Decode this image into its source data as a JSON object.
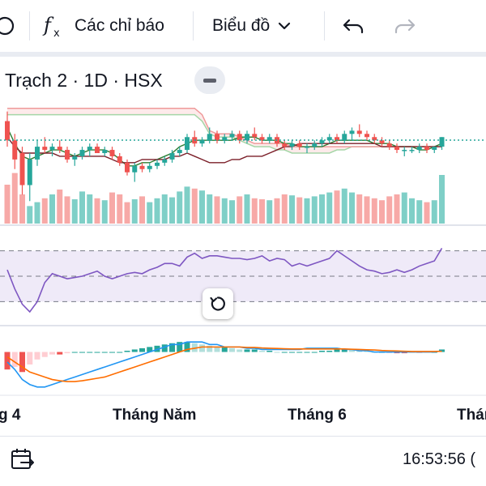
{
  "toolbar": {
    "indicators_label": "Các chỉ báo",
    "chart_type_label": "Biểu đồ",
    "icons": [
      "alert-edge-icon",
      "fx-icon",
      "chevron-down-icon",
      "undo-icon",
      "redo-icon"
    ]
  },
  "legend": {
    "symbol": "Trạch 2 · 1D · HSX"
  },
  "x_axis": {
    "labels": [
      "g 4",
      "Tháng Năm",
      "Tháng 6",
      "Thán"
    ]
  },
  "status": {
    "clock": "16:53:56 ("
  },
  "colors": {
    "up": "#26a69a",
    "down": "#ef5350",
    "vol_up": "#7fcfc7",
    "vol_down": "#f7a9a7",
    "rsi": "#7e57c2",
    "rsi_band": "#efeaf8",
    "macd": "#2196f3",
    "signal": "#ff6d00",
    "tenkan": "#2e7d32",
    "kijun": "#7b1e28",
    "senkou_a": "#a5d6a7",
    "senkou_b": "#ef9a9a"
  },
  "chart_data": {
    "type": "candlestick",
    "candles": [
      {
        "o": 70,
        "h": 73,
        "l": 62,
        "c": 64
      },
      {
        "o": 64,
        "h": 66,
        "l": 55,
        "c": 58
      },
      {
        "o": 60,
        "h": 62,
        "l": 47,
        "c": 50
      },
      {
        "o": 50,
        "h": 60,
        "l": 45,
        "c": 58
      },
      {
        "o": 58,
        "h": 64,
        "l": 56,
        "c": 62
      },
      {
        "o": 62,
        "h": 65,
        "l": 60,
        "c": 61
      },
      {
        "o": 61,
        "h": 63,
        "l": 59,
        "c": 62
      },
      {
        "o": 62,
        "h": 64,
        "l": 60,
        "c": 61
      },
      {
        "o": 61,
        "h": 62,
        "l": 57,
        "c": 58
      },
      {
        "o": 58,
        "h": 60,
        "l": 56,
        "c": 59
      },
      {
        "o": 59,
        "h": 62,
        "l": 58,
        "c": 61
      },
      {
        "o": 61,
        "h": 63,
        "l": 59,
        "c": 62
      },
      {
        "o": 62,
        "h": 63,
        "l": 60,
        "c": 60
      },
      {
        "o": 60,
        "h": 62,
        "l": 59,
        "c": 61
      },
      {
        "o": 61,
        "h": 62,
        "l": 58,
        "c": 59
      },
      {
        "o": 59,
        "h": 60,
        "l": 56,
        "c": 57
      },
      {
        "o": 57,
        "h": 58,
        "l": 53,
        "c": 54
      },
      {
        "o": 54,
        "h": 57,
        "l": 51,
        "c": 56
      },
      {
        "o": 56,
        "h": 57,
        "l": 54,
        "c": 55
      },
      {
        "o": 55,
        "h": 57,
        "l": 54,
        "c": 56
      },
      {
        "o": 56,
        "h": 58,
        "l": 55,
        "c": 57
      },
      {
        "o": 57,
        "h": 59,
        "l": 56,
        "c": 58
      },
      {
        "o": 58,
        "h": 61,
        "l": 57,
        "c": 60
      },
      {
        "o": 60,
        "h": 62,
        "l": 59,
        "c": 61
      },
      {
        "o": 61,
        "h": 66,
        "l": 60,
        "c": 65
      },
      {
        "o": 65,
        "h": 67,
        "l": 62,
        "c": 63
      },
      {
        "o": 63,
        "h": 65,
        "l": 62,
        "c": 64
      },
      {
        "o": 64,
        "h": 68,
        "l": 63,
        "c": 66
      },
      {
        "o": 66,
        "h": 67,
        "l": 63,
        "c": 64
      },
      {
        "o": 64,
        "h": 66,
        "l": 63,
        "c": 65
      },
      {
        "o": 65,
        "h": 67,
        "l": 64,
        "c": 66
      },
      {
        "o": 66,
        "h": 67,
        "l": 63,
        "c": 64
      },
      {
        "o": 64,
        "h": 67,
        "l": 63,
        "c": 66
      },
      {
        "o": 66,
        "h": 68,
        "l": 64,
        "c": 65
      },
      {
        "o": 65,
        "h": 66,
        "l": 63,
        "c": 64
      },
      {
        "o": 64,
        "h": 66,
        "l": 63,
        "c": 65
      },
      {
        "o": 65,
        "h": 66,
        "l": 62,
        "c": 63
      },
      {
        "o": 63,
        "h": 64,
        "l": 61,
        "c": 62
      },
      {
        "o": 62,
        "h": 64,
        "l": 61,
        "c": 63
      },
      {
        "o": 63,
        "h": 64,
        "l": 61,
        "c": 62
      },
      {
        "o": 62,
        "h": 63,
        "l": 60,
        "c": 62
      },
      {
        "o": 62,
        "h": 64,
        "l": 61,
        "c": 63
      },
      {
        "o": 63,
        "h": 65,
        "l": 62,
        "c": 64
      },
      {
        "o": 64,
        "h": 66,
        "l": 63,
        "c": 65
      },
      {
        "o": 65,
        "h": 66,
        "l": 63,
        "c": 64
      },
      {
        "o": 64,
        "h": 67,
        "l": 63,
        "c": 66
      },
      {
        "o": 66,
        "h": 68,
        "l": 64,
        "c": 67
      },
      {
        "o": 67,
        "h": 69,
        "l": 65,
        "c": 66
      },
      {
        "o": 66,
        "h": 67,
        "l": 64,
        "c": 65
      },
      {
        "o": 65,
        "h": 66,
        "l": 63,
        "c": 64
      },
      {
        "o": 64,
        "h": 65,
        "l": 62,
        "c": 63
      },
      {
        "o": 63,
        "h": 64,
        "l": 61,
        "c": 62
      },
      {
        "o": 62,
        "h": 63,
        "l": 60,
        "c": 61
      },
      {
        "o": 61,
        "h": 62,
        "l": 59,
        "c": 61
      },
      {
        "o": 61,
        "h": 62,
        "l": 60,
        "c": 61
      },
      {
        "o": 61,
        "h": 63,
        "l": 60,
        "c": 62
      },
      {
        "o": 62,
        "h": 63,
        "l": 60,
        "c": 61
      },
      {
        "o": 61,
        "h": 62,
        "l": 60,
        "c": 62
      },
      {
        "o": 62,
        "h": 65,
        "l": 61,
        "c": 65
      }
    ],
    "volume": [
      40,
      52,
      30,
      18,
      22,
      26,
      30,
      35,
      28,
      25,
      33,
      30,
      26,
      24,
      32,
      30,
      22,
      25,
      28,
      22,
      26,
      30,
      27,
      33,
      38,
      36,
      34,
      30,
      28,
      26,
      24,
      28,
      30,
      26,
      25,
      24,
      26,
      30,
      29,
      27,
      26,
      28,
      30,
      32,
      34,
      36,
      32,
      30,
      28,
      26,
      24,
      28,
      30,
      32,
      26,
      24,
      22,
      24,
      50
    ],
    "tenkan": [
      68,
      63,
      59,
      58,
      59,
      60,
      61,
      61,
      60,
      59,
      60,
      61,
      61,
      61,
      60,
      58,
      56,
      56,
      57,
      57,
      58,
      59,
      60,
      62,
      63,
      64,
      64,
      64,
      64,
      64,
      64,
      65,
      65,
      65,
      64,
      64,
      64,
      63,
      63,
      62,
      62,
      62,
      62,
      63,
      64,
      64,
      64,
      64,
      64,
      63,
      63,
      63,
      62,
      62,
      62,
      61,
      61,
      62,
      63
    ],
    "kijun": [
      65,
      62,
      60,
      60,
      60,
      60,
      60,
      59,
      59,
      59,
      59,
      59,
      59,
      59,
      58,
      57,
      57,
      57,
      58,
      58,
      58,
      58,
      59,
      59,
      60,
      59,
      58,
      57,
      57,
      57,
      58,
      58,
      59,
      59,
      59,
      60,
      61,
      62,
      62,
      63,
      63,
      63,
      63,
      63,
      63,
      63,
      63,
      63,
      63,
      63,
      62,
      62,
      62,
      62,
      62,
      62,
      62,
      62,
      62
    ],
    "senkou_a": [
      72,
      72,
      72,
      72,
      72,
      72,
      72,
      72,
      72,
      72,
      72,
      72,
      72,
      72,
      72,
      72,
      72,
      72,
      72,
      72,
      72,
      72,
      72,
      72,
      72,
      72,
      70,
      66,
      65,
      65,
      65,
      64,
      63,
      62,
      62,
      62,
      61,
      61,
      60,
      60,
      60,
      60,
      60,
      60,
      61,
      61,
      62,
      62,
      62,
      62,
      62,
      62,
      62,
      62,
      62,
      62,
      62,
      62,
      62
    ],
    "senkou_b": [
      74,
      74,
      74,
      74,
      74,
      74,
      74,
      74,
      74,
      74,
      74,
      74,
      74,
      74,
      74,
      74,
      74,
      74,
      74,
      74,
      74,
      74,
      74,
      74,
      74,
      74,
      72,
      67,
      66,
      66,
      66,
      65,
      64,
      63,
      63,
      63,
      63,
      63,
      62,
      62,
      62,
      62,
      62,
      62,
      62,
      62,
      62,
      62,
      62,
      62,
      62,
      62,
      62,
      62,
      62,
      62,
      62,
      62,
      62
    ],
    "rsi": [
      55,
      40,
      28,
      22,
      30,
      45,
      52,
      50,
      48,
      49,
      50,
      52,
      54,
      50,
      48,
      50,
      52,
      53,
      52,
      55,
      57,
      60,
      60,
      58,
      65,
      68,
      64,
      66,
      66,
      65,
      64,
      64,
      63,
      64,
      66,
      62,
      64,
      63,
      58,
      60,
      58,
      60,
      62,
      64,
      70,
      66,
      62,
      58,
      55,
      54,
      52,
      53,
      55,
      53,
      55,
      58,
      60,
      62,
      72
    ],
    "macd_hist": [
      -7,
      -6,
      -8,
      -5,
      -3,
      -2,
      -1,
      -1,
      -0.5,
      0,
      0,
      0,
      0,
      0,
      0,
      0,
      0.5,
      1,
      1.5,
      2,
      2.5,
      3,
      3.5,
      4,
      4,
      3.5,
      3,
      2.5,
      2,
      2,
      1.5,
      1,
      1,
      1,
      0.5,
      0.5,
      0,
      0,
      0,
      0,
      0,
      0,
      0.5,
      0.5,
      1,
      1,
      0.8,
      0.5,
      0.3,
      0,
      0,
      -0.3,
      -0.5,
      -0.5,
      -0.3,
      -0.3,
      -0.2,
      0,
      1
    ],
    "macd": [
      -4,
      -7,
      -11,
      -13,
      -14,
      -14,
      -13,
      -12,
      -11,
      -10,
      -9,
      -8,
      -7,
      -6,
      -5,
      -4,
      -3,
      -2,
      -1,
      0,
      1,
      2,
      3,
      3,
      4,
      4,
      4,
      3,
      3,
      2,
      2,
      2,
      1.5,
      1.5,
      1,
      1,
      1,
      1,
      1,
      1,
      1.5,
      1.5,
      1.5,
      1.5,
      1.5,
      1,
      1,
      0.5,
      0.5,
      0,
      0,
      0,
      0,
      0,
      0,
      0,
      0,
      0,
      0.5
    ],
    "signal": [
      -2,
      -4,
      -6,
      -8,
      -9,
      -10,
      -11,
      -11.5,
      -11.8,
      -11.8,
      -11.5,
      -11,
      -10.5,
      -10,
      -9,
      -8,
      -7,
      -6,
      -5,
      -4,
      -3,
      -2,
      -1,
      0,
      1,
      1.5,
      2,
      2,
      2,
      2,
      2,
      2,
      1.8,
      1.8,
      1.6,
      1.5,
      1.4,
      1.3,
      1.2,
      1.2,
      1.2,
      1.2,
      1.2,
      1.2,
      1.2,
      1.2,
      1.1,
      1,
      0.9,
      0.8,
      0.6,
      0.5,
      0.4,
      0.3,
      0.2,
      0.2,
      0.2,
      0.2,
      0.3
    ],
    "rsi_levels": [
      70,
      50,
      30
    ],
    "ohlc_ylim": [
      40,
      80
    ],
    "volume_ylim": [
      0,
      55
    ],
    "rsi_ylim": [
      15,
      85
    ],
    "macd_ylim": [
      -16,
      6
    ],
    "grid": false,
    "legend": "top-left"
  }
}
